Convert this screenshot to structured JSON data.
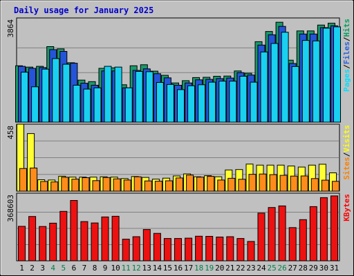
{
  "chart_data": {
    "type": "bar",
    "title": "Daily usage for January 2025",
    "categories": [
      "1",
      "2",
      "3",
      "4",
      "5",
      "6",
      "7",
      "8",
      "9",
      "10",
      "11",
      "12",
      "13",
      "14",
      "15",
      "16",
      "17",
      "18",
      "19",
      "20",
      "21",
      "22",
      "23",
      "24",
      "25",
      "26",
      "27",
      "28",
      "29",
      "30",
      "31"
    ],
    "weekend_days": [
      "4",
      "5",
      "11",
      "12",
      "18",
      "19",
      "25",
      "26"
    ],
    "panels": [
      {
        "id": "hits-pages-files",
        "ymax": 3864,
        "ymax_label": "3864",
        "legend": [
          {
            "text": "Pages",
            "color": "#00e0ff"
          },
          {
            "text": "/",
            "color": "#000000"
          },
          {
            "text": "Files",
            "color": "#2860e0"
          },
          {
            "text": "/",
            "color": "#000000"
          },
          {
            "text": "Hits",
            "color": "#00a060"
          }
        ],
        "series": [
          {
            "name": "Hits",
            "color": "#199a6b",
            "values": [
              2200,
              2150,
              2180,
              2950,
              2860,
              2320,
              1640,
              1580,
              2100,
              2120,
              1460,
              2200,
              2240,
              1990,
              1830,
              1530,
              1620,
              1740,
              1750,
              1790,
              1800,
              2000,
              1910,
              3140,
              3540,
              3900,
              2420,
              3560,
              3560,
              3790,
              3864
            ]
          },
          {
            "name": "Files",
            "color": "#2455d8",
            "values": [
              2180,
              2100,
              2130,
              2830,
              2760,
              2300,
              1520,
              1440,
              2000,
              2000,
              1340,
              2020,
              2080,
              1890,
              1730,
              1440,
              1530,
              1650,
              1670,
              1700,
              1720,
              1930,
              1840,
              3010,
              3410,
              3740,
              2290,
              3440,
              3440,
              3690,
              3760
            ]
          },
          {
            "name": "Pages",
            "color": "#19d0f0",
            "values": [
              1950,
              1380,
              2070,
              2480,
              2260,
              1440,
              1290,
              1340,
              2180,
              2150,
              1340,
              1980,
              1970,
              1550,
              1470,
              1270,
              1420,
              1460,
              1560,
              1600,
              1600,
              1790,
              1560,
              2740,
              3070,
              3510,
              2170,
              3190,
              3170,
              3670,
              3720
            ]
          }
        ]
      },
      {
        "id": "visits-sites",
        "ymax": 458,
        "ymax_label": "458",
        "legend": [
          {
            "text": "Sites",
            "color": "#ff8000"
          },
          {
            "text": "/",
            "color": "#000000"
          },
          {
            "text": "Visits",
            "color": "#ffff00"
          }
        ],
        "series": [
          {
            "name": "Visits",
            "color": "#ffff33",
            "values": [
              458,
              394,
              78,
              76,
              102,
              96,
              96,
              96,
              98,
              96,
              86,
              100,
              94,
              82,
              89,
              104,
              118,
              98,
              106,
              98,
              145,
              148,
              185,
              178,
              178,
              178,
              172,
              165,
              178,
              184,
              125
            ]
          },
          {
            "name": "Sites",
            "color": "#ff8c1a",
            "values": [
              155,
              158,
              66,
              63,
              95,
              82,
              92,
              72,
              93,
              84,
              76,
              98,
              70,
              68,
              71,
              90,
              110,
              96,
              101,
              76,
              88,
              81,
              115,
              117,
              113,
              108,
              103,
              104,
              86,
              75,
              67
            ]
          }
        ]
      },
      {
        "id": "kbytes",
        "ymax": 368603,
        "ymax_label": "368603",
        "legend": [
          {
            "text": "KBytes",
            "color": "#ff0000"
          }
        ],
        "series": [
          {
            "name": "KBytes",
            "color": "#ee1111",
            "values": [
              196000,
              252000,
              195000,
              214000,
              281000,
              343000,
              223000,
              215000,
              249000,
              253000,
              123000,
              137000,
              178000,
              156000,
              127000,
              127000,
              129000,
              140000,
              139000,
              135000,
              137000,
              127000,
              110000,
              271000,
              303000,
              312000,
              189000,
              234000,
              308000,
              359000,
              368603
            ]
          }
        ]
      }
    ]
  }
}
